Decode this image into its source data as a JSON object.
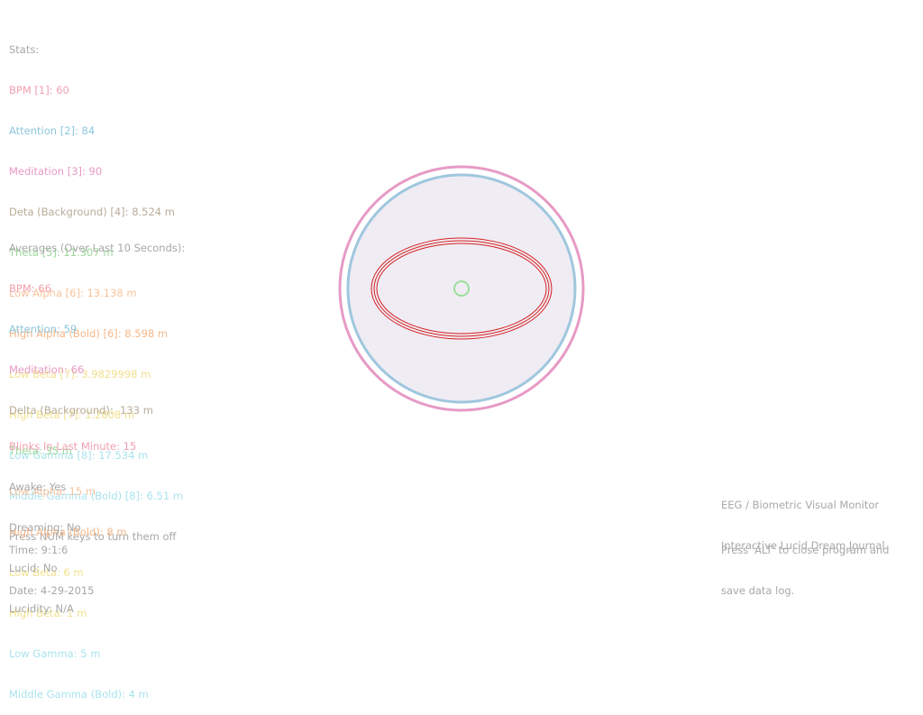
{
  "stats": {
    "heading": "Stats:",
    "lines": [
      "BPM [1]: 60",
      "Attention [2]: 84",
      "Meditation [3]: 90",
      "Deta (Background) [4]: 8.524 m",
      "Theta [5]: 11.307 m",
      "Low Alpha [6]: 13.138 m",
      "High Alpha (Bold) [6]: 8.598 m",
      "Low Beta [7]: 3.9829998 m",
      "High Beta [7]: 1.2808 m",
      "Low Gamma [8]: 17.534 m",
      "Middle Gamma (Bold) [8]: 6.51 m"
    ],
    "hint": "Press NUM keys to turn them off"
  },
  "averages": {
    "heading": "Averages (Over Last 10 Seconds):",
    "lines": [
      "BPM: 66",
      "Attention: 59",
      "Meditation: 66",
      "Delta (Background):  133 m",
      "Theta: 35 m",
      "Low Alpha: 15 m",
      "High Alpha (Bold): 8 m",
      "Low Beta: 6 m",
      "High Beta: 1 m",
      "Low Gamma: 5 m",
      "Middle Gamma (Bold): 4 m"
    ]
  },
  "status": {
    "blinks": "Blinks In Last Minute: 15",
    "awake": "Awake: Yes",
    "dreaming": "Dreaming: No",
    "lucid": "Lucid: No",
    "lucidity": "Lucidity: N/A"
  },
  "time": {
    "time": "Time: 9:1:6",
    "date": "Date: 4-29-2015"
  },
  "app_info": {
    "line1": "EEG / Biometric Visual Monitor",
    "line2": "Interactive Lucid Dream Journal"
  },
  "exit_info": {
    "line1": "Press 'ALT' to close program and",
    "line2": "save data log."
  },
  "colors": {
    "outer_ring": "#e79ac6",
    "inner_ring": "#9fc7de",
    "disc_fill": "#f0ecf4",
    "ellipse": "#d42020",
    "center_dot": "#9adf9a"
  }
}
